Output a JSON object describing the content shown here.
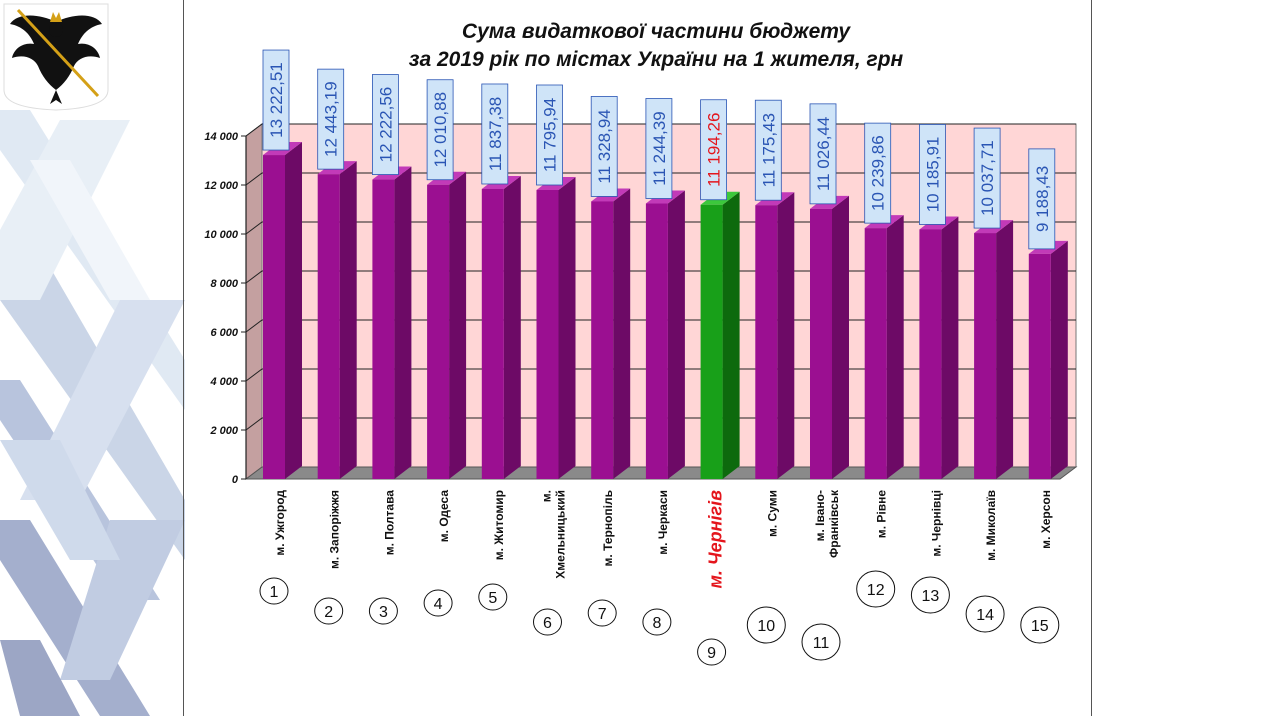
{
  "chart_data": {
    "type": "bar",
    "title": "Сума видаткової частини бюджету",
    "subtitle": "за 2019 рік по містах України на 1 жителя, грн",
    "categories": [
      "м. Ужгород",
      "м. Запоріжжя",
      "м. Полтава",
      "м. Одеса",
      "м. Житомир",
      "м. Хмельницький",
      "м. Тернопіль",
      "м. Черкаси",
      "м. Чернігів",
      "м. Суми",
      "м. Івано-Франківськ",
      "м. Рівне",
      "м. Чернівці",
      "м. Миколаїв",
      "м. Херсон"
    ],
    "category_lines": [
      [
        "м. Ужгород"
      ],
      [
        "м. Запоріжжя"
      ],
      [
        "м. Полтава"
      ],
      [
        "м. Одеса"
      ],
      [
        "м. Житомир"
      ],
      [
        "м.",
        "Хмельницький"
      ],
      [
        "м. Тернопіль"
      ],
      [
        "м. Черкаси"
      ],
      [
        "м. Чернігів"
      ],
      [
        "м. Суми"
      ],
      [
        "м. Івано-",
        "Франківськ"
      ],
      [
        "м. Рівне"
      ],
      [
        "м. Чернівці"
      ],
      [
        "м. Миколаїв"
      ],
      [
        "м. Херсон"
      ]
    ],
    "values": [
      13222.51,
      12443.19,
      12222.56,
      12010.88,
      11837.38,
      11795.94,
      11328.94,
      11244.39,
      11194.26,
      11175.43,
      11026.44,
      10239.86,
      10185.91,
      10037.71,
      9188.43
    ],
    "data_labels": [
      "13 222,51",
      "12 443,19",
      "12 222,56",
      "12 010,88",
      "11 837,38",
      "11 795,94",
      "11 328,94",
      "11 244,39",
      "11 194,26",
      "11 175,43",
      "11 026,44",
      "10 239,86",
      "10 185,91",
      "10 037,71",
      "9 188,43"
    ],
    "rank_labels": [
      "1",
      "2",
      "3",
      "4",
      "5",
      "6",
      "7",
      "8",
      "9",
      "10",
      "11",
      "12",
      "13",
      "14",
      "15"
    ],
    "highlight_index": 8,
    "ylim": [
      0,
      14000
    ],
    "yticks": [
      0,
      2000,
      4000,
      6000,
      8000,
      10000,
      12000,
      14000
    ],
    "ytick_labels": [
      "0",
      "2 000",
      "4 000",
      "6 000",
      "8 000",
      "10 000",
      "12 000",
      "14 000"
    ],
    "grid": true,
    "colors": {
      "bar": "#9b0f91",
      "bar_side": "#6d0a66",
      "bar_top": "#c23ab8",
      "highlight": "#18a019",
      "highlight_side": "#0d6a0d",
      "highlight_top": "#3cc83c",
      "plot_bg": "#ffd6d6",
      "label_box": "#cfe4f8",
      "label_text": "#2a55b4",
      "highlight_text": "#e4151c"
    }
  }
}
